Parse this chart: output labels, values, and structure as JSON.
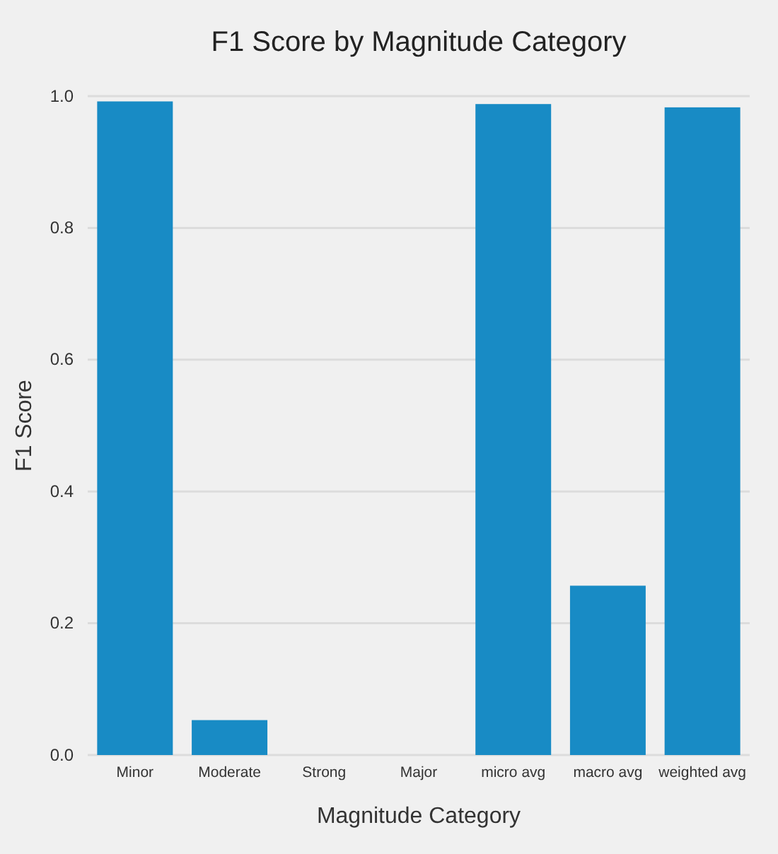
{
  "chart_data": {
    "type": "bar",
    "title": "F1 Score by Magnitude Category",
    "xlabel": "Magnitude Category",
    "ylabel": "F1 Score",
    "categories": [
      "Minor",
      "Moderate",
      "Strong",
      "Major",
      "micro avg",
      "macro avg",
      "weighted avg"
    ],
    "values": [
      0.992,
      0.053,
      0,
      0,
      0.988,
      0.257,
      0.983
    ],
    "color": "#188bc5",
    "ylim": [
      0,
      1
    ],
    "yticks": [
      {
        "value": 0,
        "label": "0.0"
      },
      0.2,
      0.4,
      0.6,
      0.8,
      {
        "value": 1,
        "label": "1.0"
      }
    ],
    "grid": "y"
  }
}
